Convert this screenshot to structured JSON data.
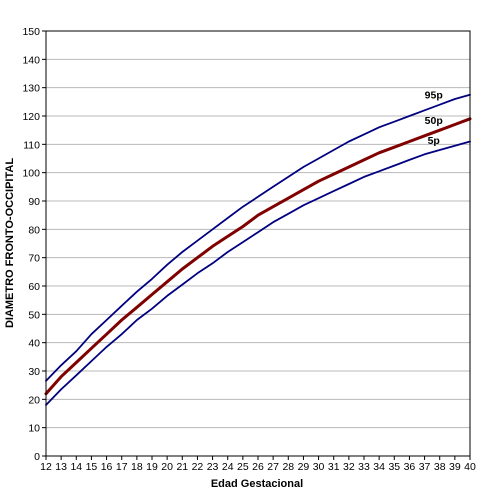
{
  "chart_data": {
    "type": "line",
    "xlabel": "Edad Gestacional",
    "ylabel": "DIAMETRO FRONTO-OCCIPITAL",
    "xlim": [
      12,
      40
    ],
    "ylim": [
      0,
      150
    ],
    "x_ticks": [
      12,
      13,
      14,
      15,
      16,
      17,
      18,
      19,
      20,
      21,
      22,
      23,
      24,
      25,
      26,
      27,
      28,
      29,
      30,
      31,
      32,
      33,
      34,
      35,
      36,
      37,
      38,
      39,
      40
    ],
    "y_ticks": [
      0,
      10,
      20,
      30,
      40,
      50,
      60,
      70,
      80,
      90,
      100,
      110,
      120,
      130,
      140,
      150
    ],
    "grid": "horizontal",
    "x": [
      12,
      13,
      14,
      15,
      16,
      17,
      18,
      19,
      20,
      21,
      22,
      23,
      24,
      25,
      26,
      27,
      28,
      29,
      30,
      31,
      32,
      33,
      34,
      35,
      36,
      37,
      38,
      39,
      40
    ],
    "series": [
      {
        "name": "95p",
        "color": "#000080",
        "values": [
          26.5,
          32,
          37,
          43,
          48,
          53,
          58,
          62.5,
          67.5,
          72,
          76,
          80,
          84,
          88,
          91.5,
          95,
          98.5,
          102,
          105,
          108,
          111,
          113.5,
          116,
          118,
          120,
          122,
          124,
          126,
          127.5
        ]
      },
      {
        "name": "50p",
        "color": "#800000",
        "values": [
          22,
          28,
          33,
          38,
          43,
          48,
          52.5,
          57,
          61.5,
          66,
          70,
          74,
          77.5,
          81,
          85,
          88,
          91,
          94,
          97,
          99.5,
          102,
          104.5,
          107,
          109,
          111,
          113,
          115,
          117,
          119
        ]
      },
      {
        "name": "5p",
        "color": "#000080",
        "values": [
          18,
          23.5,
          28.5,
          33.5,
          38.5,
          43,
          48,
          52,
          56.5,
          60.5,
          64.5,
          68,
          72,
          75.5,
          79,
          82.5,
          85.5,
          88.5,
          91,
          93.5,
          96,
          98.5,
          100.5,
          102.5,
          104.5,
          106.5,
          108,
          109.5,
          111
        ]
      }
    ]
  }
}
